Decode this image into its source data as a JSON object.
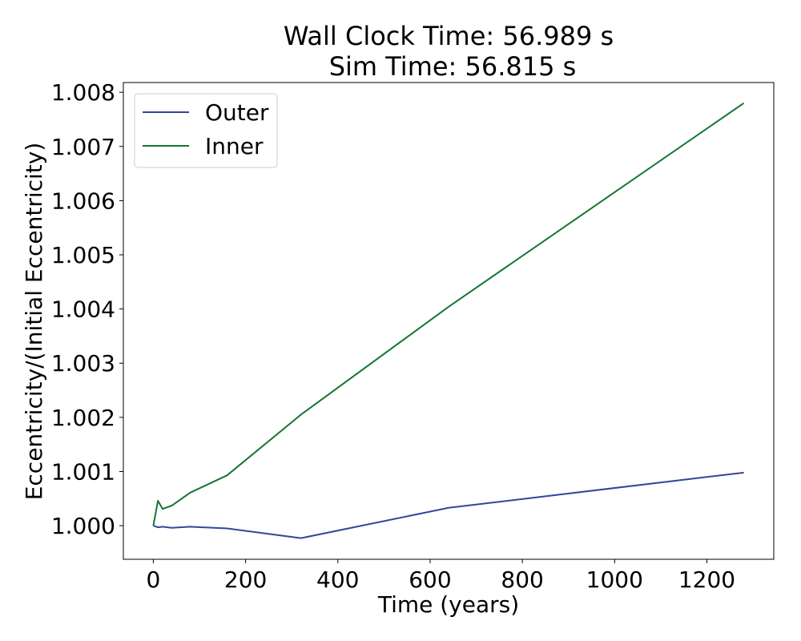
{
  "chart_data": {
    "type": "line",
    "title": [
      "Wall Clock Time: 56.989 s",
      "Sim Time: 56.815 s"
    ],
    "xlabel": "Time (years)",
    "ylabel": "Eccentricity/(Initial Eccentricity)",
    "xlim": [
      -65,
      1345
    ],
    "ylim": [
      0.99938,
      1.00818
    ],
    "xticks": [
      0,
      200,
      400,
      600,
      800,
      1000,
      1200
    ],
    "xtick_labels": [
      "0",
      "200",
      "400",
      "600",
      "800",
      "1000",
      "1200"
    ],
    "yticks": [
      1.0,
      1.001,
      1.002,
      1.003,
      1.004,
      1.005,
      1.006,
      1.007,
      1.008
    ],
    "ytick_labels": [
      "1.000",
      "1.001",
      "1.002",
      "1.003",
      "1.004",
      "1.005",
      "1.006",
      "1.007",
      "1.008"
    ],
    "grid": false,
    "legend_position": "top-left",
    "series": [
      {
        "name": "Outer",
        "color": "#34469b",
        "x": [
          0,
          10,
          20,
          40,
          80,
          160,
          320,
          640,
          1280
        ],
        "y": [
          1.0,
          0.99997,
          0.99998,
          0.99996,
          0.99998,
          0.99995,
          0.99977,
          1.00033,
          1.00098
        ]
      },
      {
        "name": "Inner",
        "color": "#147532",
        "x": [
          0,
          10,
          20,
          40,
          80,
          160,
          320,
          640,
          1280
        ],
        "y": [
          1.0,
          1.00046,
          1.00031,
          1.00037,
          1.00061,
          1.00093,
          1.00205,
          1.00404,
          1.0078
        ]
      }
    ]
  }
}
